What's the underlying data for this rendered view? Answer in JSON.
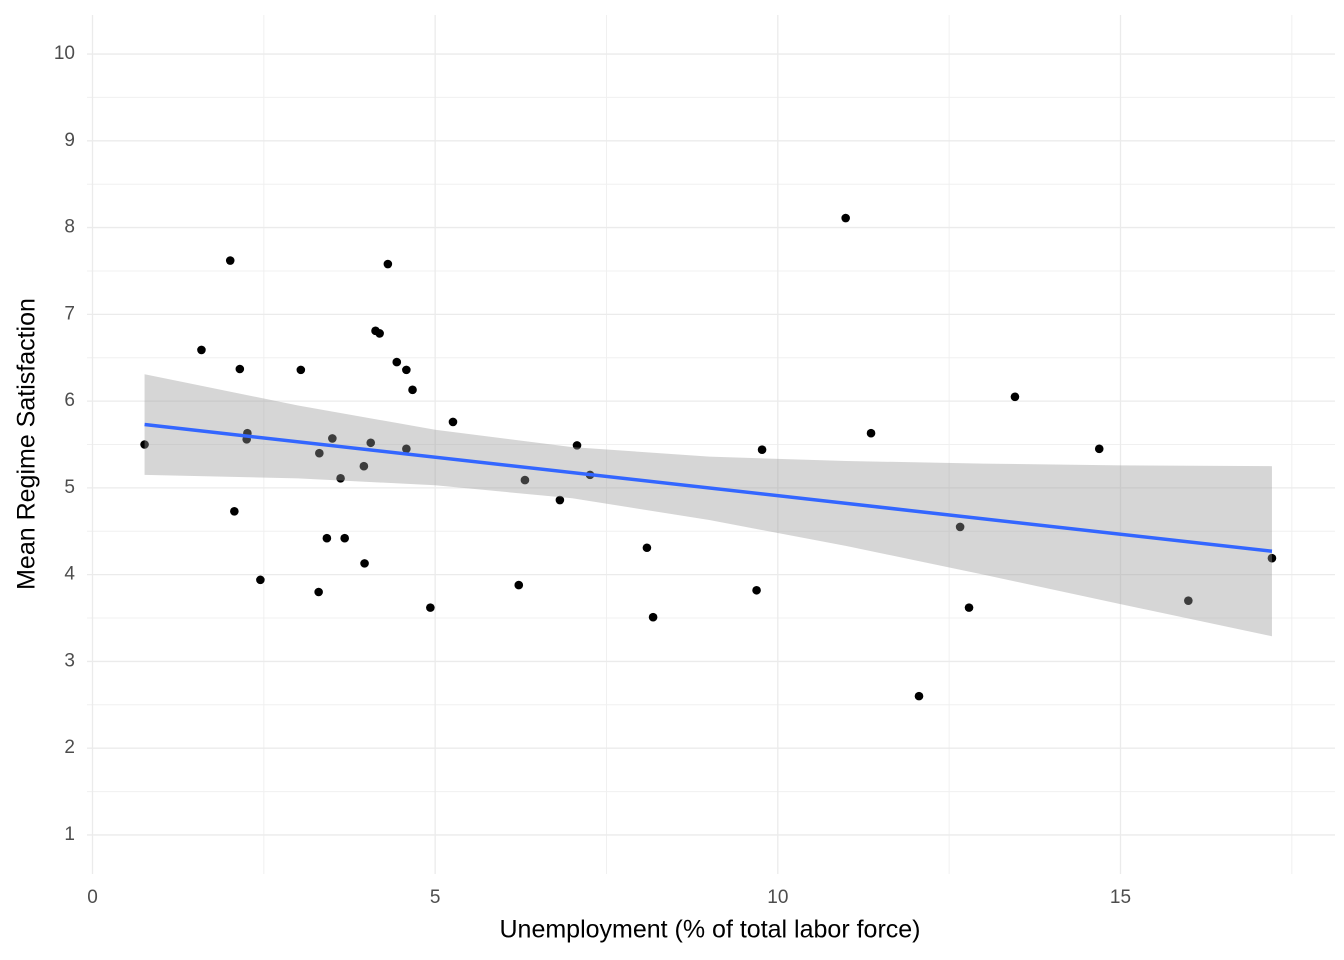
{
  "chart_data": {
    "type": "scatter",
    "x_label": "Unemployment (% of total labor force)",
    "y_label": "Mean Regime Satisfaction",
    "x": [
      0.76,
      1.59,
      2.01,
      2.07,
      2.15,
      2.26,
      2.25,
      2.45,
      3.04,
      3.3,
      3.31,
      3.42,
      3.5,
      3.62,
      3.68,
      3.96,
      3.97,
      4.06,
      4.13,
      4.19,
      4.31,
      4.44,
      4.58,
      4.58,
      4.67,
      4.93,
      5.26,
      6.22,
      6.31,
      6.82,
      7.07,
      7.26,
      8.09,
      8.18,
      9.69,
      9.77,
      10.99,
      11.36,
      12.06,
      12.66,
      12.79,
      13.46,
      14.69,
      15.99,
      17.21
    ],
    "values": [
      5.5,
      6.59,
      7.62,
      4.73,
      6.37,
      5.63,
      5.56,
      3.94,
      6.36,
      3.8,
      5.4,
      4.42,
      5.57,
      5.11,
      4.42,
      5.25,
      4.13,
      5.52,
      6.81,
      6.78,
      7.58,
      6.45,
      6.36,
      5.45,
      6.13,
      3.62,
      5.76,
      3.88,
      5.09,
      4.86,
      5.49,
      5.15,
      4.31,
      3.51,
      3.82,
      5.44,
      8.11,
      5.63,
      2.6,
      4.55,
      3.62,
      6.05,
      5.45,
      3.7,
      4.19
    ],
    "color": "#000000",
    "fit": {
      "x": [
        0.76,
        17.21
      ],
      "values": [
        5.73,
        4.27
      ],
      "color": "#3366ff"
    },
    "band": {
      "x": [
        0.76,
        3,
        5,
        7,
        9,
        11,
        13,
        15,
        17.21
      ],
      "upper": [
        6.31,
        5.95,
        5.67,
        5.47,
        5.36,
        5.31,
        5.28,
        5.26,
        5.25
      ],
      "lower": [
        5.15,
        5.11,
        5.03,
        4.88,
        4.63,
        4.33,
        4.0,
        3.66,
        3.29
      ],
      "color": "#999999"
    },
    "xlim": [
      -0.08,
      18.13
    ],
    "ylim": [
      0.55,
      10.45
    ],
    "xticks": [
      0,
      5,
      10,
      15
    ],
    "yticks": [
      1,
      2,
      3,
      4,
      5,
      6,
      7,
      8,
      9,
      10
    ],
    "grid": true
  }
}
